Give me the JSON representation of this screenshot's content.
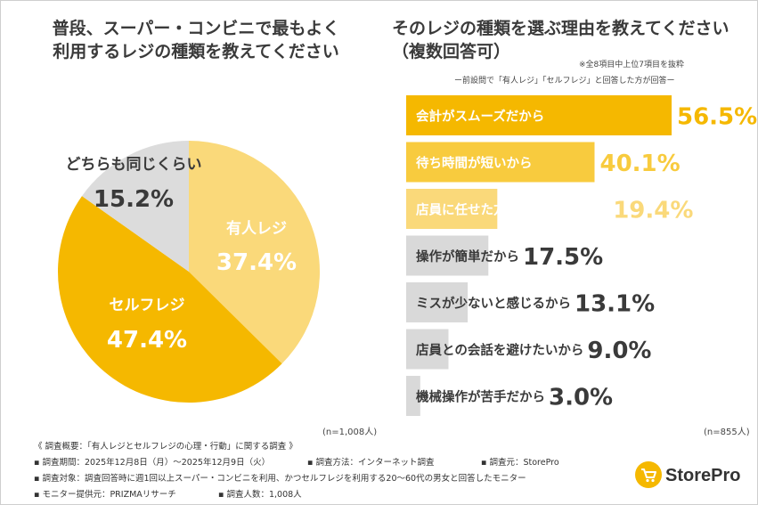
{
  "left_title_lines": [
    "普段、スーパー・コンビニで最もよく",
    "利用するレジの種類を教えてください"
  ],
  "right_title_lines": [
    "そのレジの種類を選ぶ理由を教えてください",
    "（複数回答可）"
  ],
  "right_note1": "※全8項目中上位7項目を抜粋",
  "right_note2": "ー前設問で「有人レジ」「セルフレジ」と回答した方が回答ー",
  "left_n": "(n=1,008人)",
  "right_n": "(n=855人)",
  "footer": {
    "line1": "《 調査概要：「有人レジとセルフレジの心理・行動」に関する調査 》",
    "line2a": "▪ 調査期間：2025年12月8日（月）〜2025年12月9日（火）",
    "line2b": "▪ 調査方法：インターネット調査",
    "line2c": "▪ 調査元：StorePro",
    "line3": "▪ 調査対象：調査回答時に週1回以上スーパー・コンビニを利用、かつセルフレジを利用する20〜60代の男女と回答したモニター",
    "line4a": "▪ モニター提供元：PRIZMAリサーチ",
    "line4b": "▪ 調査人数：1,008人"
  },
  "logo_text": "StorePro",
  "colors": {
    "accent": "#f5b800",
    "light": "#fad97a",
    "bar2": "#f8cb3e",
    "gray": "#d9d9d9",
    "text": "#3a3a3a"
  },
  "chart_data": [
    {
      "type": "pie",
      "title": "普段、スーパー・コンビニで最もよく利用するレジの種類を教えてください",
      "slices": [
        {
          "label": "有人レジ",
          "value": 37.4,
          "display": "37.4%",
          "color": "#fad97a"
        },
        {
          "label": "セルフレジ",
          "value": 47.4,
          "display": "47.4%",
          "color": "#f5b800"
        },
        {
          "label": "どちらも同じくらい",
          "value": 15.2,
          "display": "15.2%",
          "color": "#dcdcdc"
        }
      ]
    },
    {
      "type": "bar",
      "title": "そのレジの種類を選ぶ理由を教えてください（複数回答可）",
      "categories": [
        "会計がスムーズだから",
        "待ち時間が短いから",
        "店員に任せた方が安心できるから",
        "操作が簡単だから",
        "ミスが少ないと感じるから",
        "店員との会話を避けたいから",
        "機械操作が苦手だから"
      ],
      "values": [
        56.5,
        40.1,
        19.4,
        17.5,
        13.1,
        9.0,
        3.0
      ],
      "labels": [
        "56.5%",
        "40.1%",
        "19.4%",
        "17.5%",
        "13.1%",
        "9.0%",
        "3.0%"
      ],
      "colors": [
        "#f5b800",
        "#f8cb3e",
        "#fad97a",
        "#d9d9d9",
        "#d9d9d9",
        "#d9d9d9",
        "#d9d9d9"
      ],
      "xlim": [
        0,
        56.5
      ]
    }
  ]
}
